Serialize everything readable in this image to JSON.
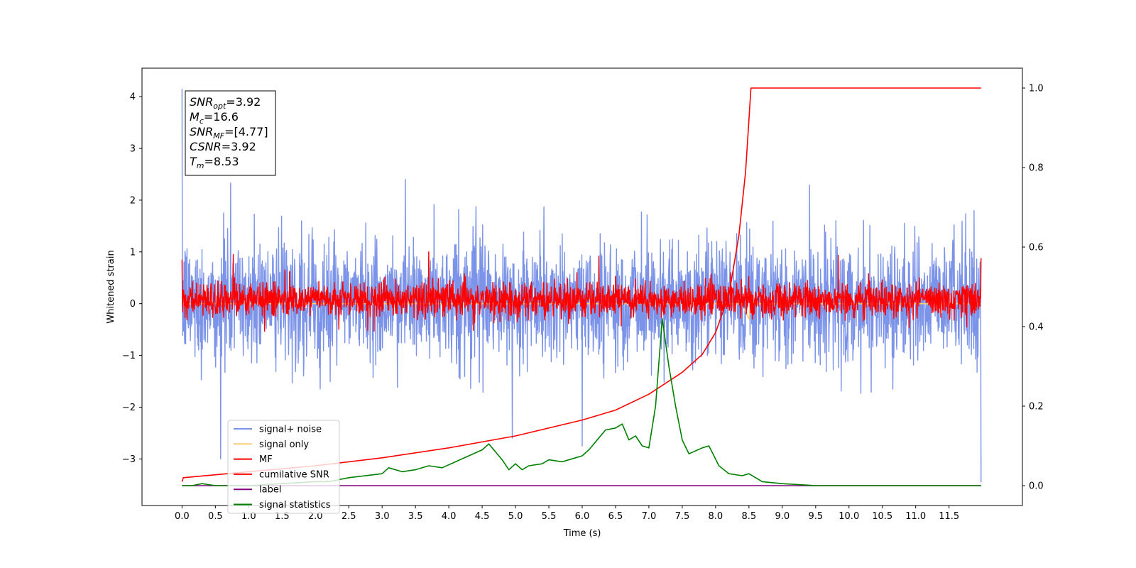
{
  "chart_data": {
    "type": "line",
    "xlabel": "Time (s)",
    "ylabel": "Whitened strain",
    "xlim": [
      -0.6,
      12.6
    ],
    "ylim": [
      -3.9,
      4.55
    ],
    "y2lim": [
      -0.05,
      1.05
    ],
    "x_ticks": [
      0.0,
      0.5,
      1.0,
      1.5,
      2.0,
      2.5,
      3.0,
      3.5,
      4.0,
      4.5,
      5.0,
      5.5,
      6.0,
      6.5,
      7.0,
      7.5,
      8.0,
      8.5,
      9.0,
      9.5,
      10.0,
      10.5,
      11.0,
      11.5
    ],
    "x_tick_labels": [
      "0.0",
      "0.5",
      "1.0",
      "1.5",
      "2.0",
      "2.5",
      "3.0",
      "3.5",
      "4.0",
      "4.5",
      "5.0",
      "5.5",
      "6.0",
      "6.5",
      "7.0",
      "7.5",
      "8.0",
      "8.5",
      "9.0",
      "9.5",
      "10.0",
      "10.5",
      "11.0",
      "11.5"
    ],
    "y_ticks": [
      -3,
      -2,
      -1,
      0,
      1,
      2,
      3,
      4
    ],
    "y_tick_labels": [
      "−3",
      "−2",
      "−1",
      "0",
      "1",
      "2",
      "3",
      "4"
    ],
    "y2_ticks": [
      0.0,
      0.2,
      0.4,
      0.6,
      0.8,
      1.0
    ],
    "y2_tick_labels": [
      "0.0",
      "0.2",
      "0.4",
      "0.6",
      "0.8",
      "1.0"
    ],
    "legend_position": "lower-left",
    "annotation": {
      "lines": [
        {
          "var": "SNR",
          "sub": "opt",
          "value": "=3.92"
        },
        {
          "var": "M",
          "sub": "c",
          "value": "=16.6"
        },
        {
          "var": "SNR",
          "sub": "MF",
          "value": "=[4.77]"
        },
        {
          "var": "CSNR",
          "sub": "",
          "value": "=3.92"
        },
        {
          "var": "T",
          "sub": "m",
          "value": "=8.53"
        }
      ]
    },
    "series": [
      {
        "name": "signal+ noise",
        "color": "#7b93e8",
        "axis": "left",
        "style": "noise",
        "x_range": [
          0.0,
          11.98
        ],
        "typical_range": [
          -1.3,
          1.4
        ],
        "extremes": [
          {
            "x": 0.0,
            "y": 4.15
          },
          {
            "x": 0.58,
            "y": -3.0
          },
          {
            "x": 0.73,
            "y": 2.33
          },
          {
            "x": 3.35,
            "y": 2.4
          },
          {
            "x": 4.95,
            "y": -2.6
          },
          {
            "x": 6.0,
            "y": -2.75
          },
          {
            "x": 11.98,
            "y": -3.45
          }
        ]
      },
      {
        "name": "signal only",
        "color": "#f5d078",
        "axis": "left",
        "style": "flat",
        "points": [
          [
            0.0,
            0.0
          ],
          [
            8.4,
            0.0
          ],
          [
            8.5,
            -0.3
          ],
          [
            8.53,
            0.1
          ],
          [
            8.6,
            0.0
          ],
          [
            11.98,
            0.0
          ]
        ]
      },
      {
        "name": "MF",
        "color": "#ff0000",
        "axis": "left",
        "style": "noise",
        "x_range": [
          0.0,
          11.98
        ],
        "typical_range": [
          -0.3,
          0.45
        ],
        "extremes": [
          {
            "x": 0.0,
            "y": 0.85
          },
          {
            "x": 0.77,
            "y": 0.95
          },
          {
            "x": 3.7,
            "y": 1.0
          },
          {
            "x": 6.25,
            "y": 0.92
          },
          {
            "x": 11.98,
            "y": 0.88
          }
        ]
      },
      {
        "name": "cumilative SNR",
        "color": "#ff0000",
        "axis": "right",
        "style": "line",
        "points": [
          [
            0.0,
            0.01
          ],
          [
            0.02,
            0.02
          ],
          [
            1.0,
            0.035
          ],
          [
            2.0,
            0.05
          ],
          [
            3.0,
            0.07
          ],
          [
            4.0,
            0.095
          ],
          [
            5.0,
            0.125
          ],
          [
            6.0,
            0.165
          ],
          [
            6.5,
            0.19
          ],
          [
            7.0,
            0.23
          ],
          [
            7.5,
            0.285
          ],
          [
            7.8,
            0.33
          ],
          [
            8.0,
            0.385
          ],
          [
            8.2,
            0.48
          ],
          [
            8.35,
            0.63
          ],
          [
            8.45,
            0.79
          ],
          [
            8.5,
            0.92
          ],
          [
            8.53,
            1.0
          ],
          [
            11.98,
            1.0
          ]
        ]
      },
      {
        "name": "label",
        "color": "#800080",
        "axis": "right",
        "style": "line",
        "points": [
          [
            0.0,
            0.0
          ],
          [
            11.98,
            0.0
          ]
        ]
      },
      {
        "name": "signal statistics",
        "color": "#008000",
        "axis": "right",
        "style": "line",
        "points": [
          [
            0.0,
            0.0
          ],
          [
            0.15,
            0.0
          ],
          [
            0.3,
            0.005
          ],
          [
            0.5,
            0.0
          ],
          [
            1.0,
            0.0
          ],
          [
            1.5,
            0.005
          ],
          [
            2.0,
            0.01
          ],
          [
            2.2,
            0.01
          ],
          [
            2.5,
            0.02
          ],
          [
            3.0,
            0.03
          ],
          [
            3.1,
            0.045
          ],
          [
            3.3,
            0.035
          ],
          [
            3.5,
            0.04
          ],
          [
            3.7,
            0.05
          ],
          [
            3.9,
            0.045
          ],
          [
            4.1,
            0.06
          ],
          [
            4.3,
            0.075
          ],
          [
            4.5,
            0.09
          ],
          [
            4.6,
            0.105
          ],
          [
            4.7,
            0.085
          ],
          [
            4.8,
            0.065
          ],
          [
            4.9,
            0.04
          ],
          [
            5.0,
            0.055
          ],
          [
            5.1,
            0.04
          ],
          [
            5.2,
            0.05
          ],
          [
            5.4,
            0.055
          ],
          [
            5.5,
            0.065
          ],
          [
            5.7,
            0.06
          ],
          [
            5.9,
            0.07
          ],
          [
            6.0,
            0.075
          ],
          [
            6.1,
            0.09
          ],
          [
            6.25,
            0.12
          ],
          [
            6.35,
            0.14
          ],
          [
            6.5,
            0.145
          ],
          [
            6.6,
            0.155
          ],
          [
            6.7,
            0.115
          ],
          [
            6.8,
            0.125
          ],
          [
            6.9,
            0.1
          ],
          [
            7.0,
            0.095
          ],
          [
            7.1,
            0.2
          ],
          [
            7.2,
            0.42
          ],
          [
            7.3,
            0.3
          ],
          [
            7.4,
            0.2
          ],
          [
            7.5,
            0.115
          ],
          [
            7.6,
            0.08
          ],
          [
            7.8,
            0.095
          ],
          [
            7.9,
            0.1
          ],
          [
            8.05,
            0.05
          ],
          [
            8.2,
            0.03
          ],
          [
            8.4,
            0.025
          ],
          [
            8.5,
            0.03
          ],
          [
            8.7,
            0.01
          ],
          [
            9.0,
            0.005
          ],
          [
            9.5,
            0.0
          ],
          [
            11.98,
            0.0
          ]
        ]
      }
    ]
  }
}
